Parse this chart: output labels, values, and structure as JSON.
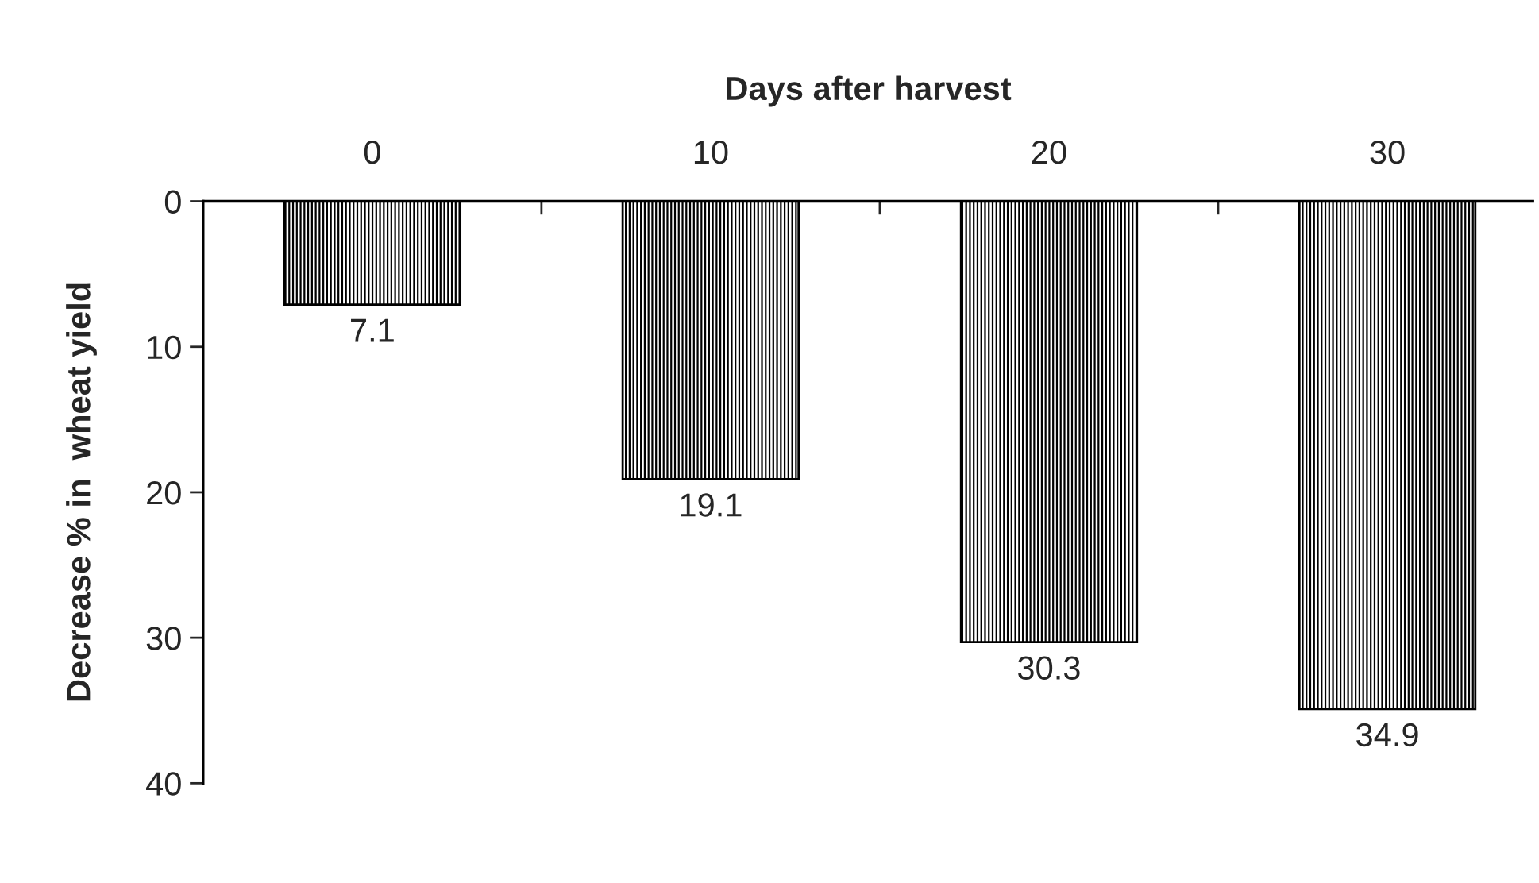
{
  "chart_data": {
    "type": "bar",
    "xlabel": "Days after harvest",
    "ylabel": "Decrease % in  wheat yield",
    "categories": [
      "0",
      "10",
      "20",
      "30"
    ],
    "values": [
      7.1,
      19.1,
      30.3,
      34.9
    ],
    "color": "#000000",
    "ylim": [
      40,
      0
    ],
    "yticks": [
      0,
      10,
      20,
      30,
      40
    ],
    "data_labels": true,
    "grid": false,
    "legend": false
  }
}
